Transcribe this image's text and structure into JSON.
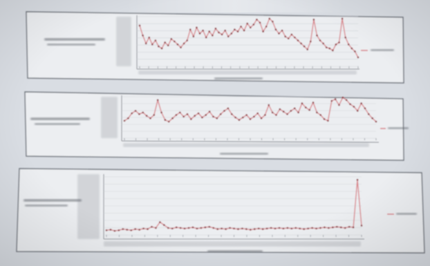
{
  "colors": {
    "background": "#d9dde3",
    "paper": "#eceef1",
    "panel_border": "#6e737b",
    "axis": "#7a7f87",
    "grid": "#cfd3d9",
    "series": "#d9848a",
    "marker": "#8a2e35",
    "smudge": "#5f646c"
  },
  "chart_data": [
    {
      "type": "line",
      "series": [
        {
          "values": [
            0.82,
            0.62,
            0.46,
            0.58,
            0.44,
            0.52,
            0.4,
            0.36,
            0.48,
            0.42,
            0.55,
            0.5,
            0.44,
            0.38,
            0.46,
            0.52,
            0.74,
            0.6,
            0.78,
            0.66,
            0.72,
            0.58,
            0.7,
            0.62,
            0.76,
            0.68,
            0.64,
            0.72,
            0.6,
            0.66,
            0.74,
            0.7,
            0.8,
            0.72,
            0.86,
            0.78,
            0.84,
            0.94,
            0.88,
            0.7,
            0.8,
            0.96,
            0.9,
            0.74,
            0.66,
            0.72,
            0.6,
            0.56,
            0.64,
            0.58,
            0.52,
            0.46,
            0.4,
            0.34,
            0.5,
            0.94,
            0.62,
            0.52,
            0.46,
            0.38,
            0.36,
            0.32,
            0.44,
            0.48,
            0.96,
            0.58,
            0.44,
            0.36,
            0.3,
            0.18
          ]
        }
      ],
      "ylim": [
        0,
        1
      ],
      "grid": true
    },
    {
      "type": "line",
      "series": [
        {
          "values": [
            0.42,
            0.48,
            0.6,
            0.66,
            0.58,
            0.62,
            0.54,
            0.48,
            0.56,
            0.92,
            0.62,
            0.44,
            0.4,
            0.48,
            0.56,
            0.62,
            0.52,
            0.58,
            0.46,
            0.54,
            0.6,
            0.5,
            0.56,
            0.64,
            0.52,
            0.48,
            0.58,
            0.66,
            0.72,
            0.58,
            0.5,
            0.44,
            0.5,
            0.56,
            0.46,
            0.52,
            0.6,
            0.48,
            0.56,
            0.8,
            0.62,
            0.56,
            0.7,
            0.64,
            0.58,
            0.66,
            0.72,
            0.62,
            0.84,
            0.74,
            0.68,
            0.86,
            0.62,
            0.56,
            0.46,
            0.42,
            0.9,
            0.94,
            0.8,
            0.98,
            0.92,
            0.82,
            0.76,
            0.66,
            0.84,
            0.72,
            0.58,
            0.48,
            0.4
          ]
        }
      ],
      "ylim": [
        0,
        1
      ],
      "grid": true
    },
    {
      "type": "line",
      "series": [
        {
          "values": [
            0.08,
            0.09,
            0.07,
            0.08,
            0.1,
            0.09,
            0.08,
            0.1,
            0.09,
            0.11,
            0.1,
            0.14,
            0.12,
            0.22,
            0.17,
            0.12,
            0.11,
            0.13,
            0.12,
            0.11,
            0.12,
            0.13,
            0.11,
            0.12,
            0.13,
            0.14,
            0.12,
            0.1,
            0.11,
            0.1,
            0.12,
            0.11,
            0.1,
            0.11,
            0.1,
            0.09,
            0.1,
            0.11,
            0.1,
            0.11,
            0.12,
            0.11,
            0.12,
            0.11,
            0.12,
            0.11,
            0.12,
            0.11,
            0.1,
            0.11,
            0.12,
            0.11,
            0.12,
            0.13,
            0.12,
            0.13,
            0.14,
            0.13,
            0.12,
            0.14,
            0.13,
            0.95,
            0.16
          ]
        }
      ],
      "ylim": [
        0,
        1
      ],
      "grid": true
    }
  ]
}
